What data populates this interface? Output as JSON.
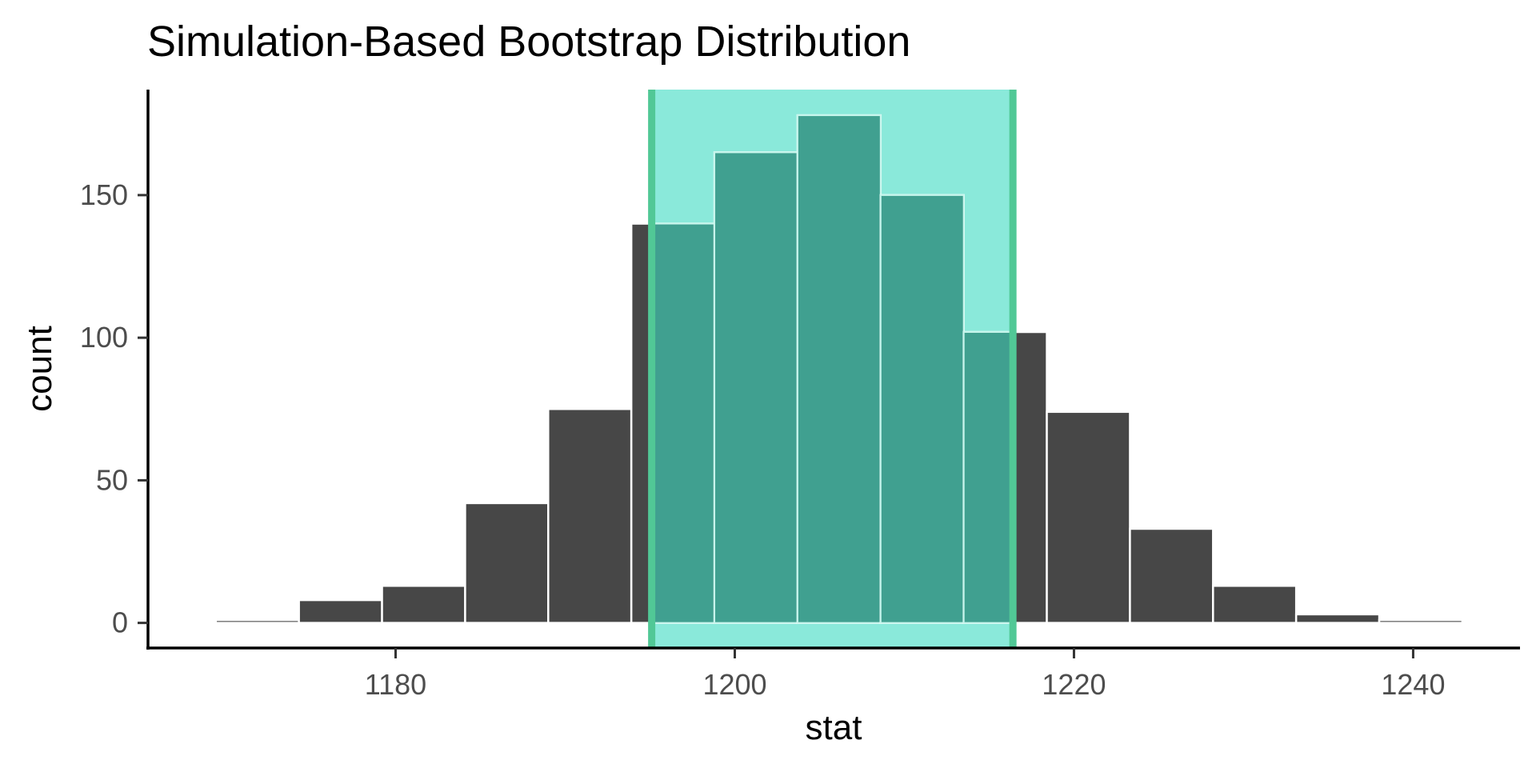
{
  "chart_data": {
    "type": "bar",
    "title": "Simulation-Based Bootstrap Distribution",
    "xlabel": "stat",
    "ylabel": "count",
    "x_ticks": [
      1180,
      1200,
      1220,
      1240
    ],
    "y_ticks": [
      0,
      50,
      100,
      150
    ],
    "xlim": [
      1165.4,
      1246.3
    ],
    "ylim": [
      -8.8,
      187
    ],
    "bins": [
      {
        "start": 1169.4,
        "end": 1174.3,
        "count": 1
      },
      {
        "start": 1174.3,
        "end": 1179.2,
        "count": 8
      },
      {
        "start": 1179.2,
        "end": 1184.1,
        "count": 13
      },
      {
        "start": 1184.1,
        "end": 1189.0,
        "count": 42
      },
      {
        "start": 1189.0,
        "end": 1193.9,
        "count": 75
      },
      {
        "start": 1193.9,
        "end": 1198.8,
        "count": 140
      },
      {
        "start": 1198.8,
        "end": 1203.7,
        "count": 165
      },
      {
        "start": 1203.7,
        "end": 1208.6,
        "count": 178
      },
      {
        "start": 1208.6,
        "end": 1213.5,
        "count": 150
      },
      {
        "start": 1213.5,
        "end": 1218.4,
        "count": 102
      },
      {
        "start": 1218.4,
        "end": 1223.3,
        "count": 74
      },
      {
        "start": 1223.3,
        "end": 1228.2,
        "count": 33
      },
      {
        "start": 1228.2,
        "end": 1233.1,
        "count": 13
      },
      {
        "start": 1233.1,
        "end": 1238.0,
        "count": 3
      },
      {
        "start": 1238.0,
        "end": 1242.9,
        "count": 1
      }
    ],
    "confidence_interval": {
      "lower": 1195.1,
      "upper": 1216.4
    },
    "grid": false,
    "legend": "none",
    "colors": {
      "bar_fill": "#474747",
      "bar_outline": "#ffffff",
      "ci_fill": "#8ae9da",
      "ci_line": "#51c896",
      "ci_overlap": "#40a090",
      "ci_overlap_outline": "#c6f5ec"
    }
  }
}
